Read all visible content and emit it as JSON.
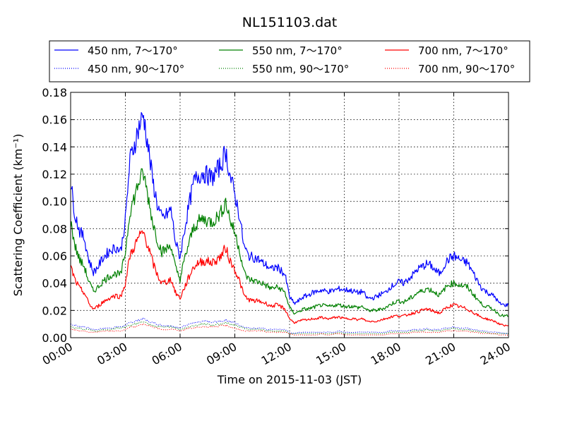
{
  "chart_data": {
    "type": "line",
    "title": "NL151103.dat",
    "xlabel": "Time on 2015-11-03 (JST)",
    "ylabel": "Scattering Coefficient (km⁻¹)",
    "xlim": [
      0,
      24
    ],
    "ylim": [
      0,
      0.18
    ],
    "grid": true,
    "legend_placement": "top",
    "x_ticks": [
      0,
      3,
      6,
      9,
      12,
      15,
      18,
      21,
      24
    ],
    "x_tick_labels": [
      "00:00",
      "03:00",
      "06:00",
      "09:00",
      "12:00",
      "15:00",
      "18:00",
      "21:00",
      "24:00"
    ],
    "y_ticks": [
      0,
      0.02,
      0.04,
      0.06,
      0.08,
      0.1,
      0.12,
      0.14,
      0.16,
      0.18
    ],
    "y_tick_labels": [
      "0.00",
      "0.02",
      "0.04",
      "0.06",
      "0.08",
      "0.10",
      "0.12",
      "0.14",
      "0.16",
      "0.18"
    ],
    "x": [
      0,
      0.25,
      0.5,
      0.75,
      1.0,
      1.25,
      1.5,
      1.75,
      2.0,
      2.25,
      2.5,
      2.75,
      3.0,
      3.25,
      3.5,
      3.75,
      4.0,
      4.25,
      4.5,
      4.75,
      5.0,
      5.25,
      5.5,
      5.75,
      6.0,
      6.25,
      6.5,
      6.75,
      7.0,
      7.25,
      7.5,
      7.75,
      8.0,
      8.25,
      8.5,
      8.75,
      9.0,
      9.25,
      9.5,
      9.75,
      10.0,
      10.25,
      10.5,
      10.75,
      11.0,
      11.25,
      11.5,
      11.75,
      12.0,
      12.25,
      12.5,
      12.75,
      13.0,
      13.25,
      13.5,
      13.75,
      14.0,
      14.25,
      14.5,
      14.75,
      15.0,
      15.25,
      15.5,
      15.75,
      16.0,
      16.25,
      16.5,
      16.75,
      17.0,
      17.25,
      17.5,
      17.75,
      18.0,
      18.25,
      18.5,
      18.75,
      19.0,
      19.25,
      19.5,
      19.75,
      20.0,
      20.25,
      20.5,
      20.75,
      21.0,
      21.25,
      21.5,
      21.75,
      22.0,
      22.25,
      22.5,
      22.75,
      23.0,
      23.25,
      23.5,
      23.75,
      24.0
    ],
    "series": [
      {
        "name": "450 nm, 7～170°",
        "color": "#0000ff",
        "style": "solid",
        "values": [
          0.113,
          0.09,
          0.078,
          0.073,
          0.057,
          0.048,
          0.052,
          0.058,
          0.062,
          0.065,
          0.066,
          0.064,
          0.086,
          0.13,
          0.142,
          0.155,
          0.163,
          0.14,
          0.115,
          0.098,
          0.087,
          0.09,
          0.094,
          0.07,
          0.059,
          0.08,
          0.098,
          0.114,
          0.119,
          0.121,
          0.119,
          0.117,
          0.122,
          0.127,
          0.137,
          0.118,
          0.105,
          0.09,
          0.067,
          0.06,
          0.059,
          0.058,
          0.055,
          0.053,
          0.05,
          0.052,
          0.05,
          0.046,
          0.03,
          0.025,
          0.027,
          0.03,
          0.031,
          0.033,
          0.034,
          0.035,
          0.034,
          0.034,
          0.035,
          0.036,
          0.035,
          0.035,
          0.034,
          0.033,
          0.034,
          0.029,
          0.029,
          0.03,
          0.032,
          0.033,
          0.037,
          0.039,
          0.041,
          0.04,
          0.043,
          0.046,
          0.05,
          0.052,
          0.054,
          0.053,
          0.049,
          0.047,
          0.054,
          0.058,
          0.06,
          0.058,
          0.056,
          0.055,
          0.049,
          0.043,
          0.037,
          0.034,
          0.032,
          0.03,
          0.025,
          0.024,
          0.024
        ]
      },
      {
        "name": "550 nm, 7～170°",
        "color": "#008000",
        "style": "solid",
        "values": [
          0.085,
          0.067,
          0.057,
          0.052,
          0.041,
          0.034,
          0.037,
          0.041,
          0.044,
          0.046,
          0.047,
          0.046,
          0.063,
          0.093,
          0.103,
          0.115,
          0.12,
          0.103,
          0.085,
          0.072,
          0.063,
          0.065,
          0.068,
          0.051,
          0.043,
          0.058,
          0.07,
          0.081,
          0.085,
          0.087,
          0.086,
          0.085,
          0.088,
          0.092,
          0.1,
          0.086,
          0.077,
          0.065,
          0.048,
          0.043,
          0.042,
          0.041,
          0.04,
          0.038,
          0.036,
          0.037,
          0.036,
          0.033,
          0.022,
          0.018,
          0.019,
          0.021,
          0.021,
          0.022,
          0.023,
          0.024,
          0.023,
          0.023,
          0.024,
          0.024,
          0.023,
          0.023,
          0.023,
          0.022,
          0.023,
          0.02,
          0.02,
          0.02,
          0.021,
          0.022,
          0.024,
          0.026,
          0.027,
          0.026,
          0.028,
          0.03,
          0.033,
          0.034,
          0.036,
          0.035,
          0.033,
          0.031,
          0.036,
          0.039,
          0.04,
          0.039,
          0.038,
          0.037,
          0.033,
          0.029,
          0.025,
          0.023,
          0.022,
          0.02,
          0.017,
          0.016,
          0.016
        ]
      },
      {
        "name": "700 nm, 7～170°",
        "color": "#ff0000",
        "style": "solid",
        "values": [
          0.052,
          0.042,
          0.036,
          0.033,
          0.025,
          0.021,
          0.023,
          0.026,
          0.028,
          0.03,
          0.031,
          0.03,
          0.04,
          0.06,
          0.067,
          0.074,
          0.077,
          0.067,
          0.055,
          0.046,
          0.04,
          0.041,
          0.043,
          0.033,
          0.029,
          0.037,
          0.045,
          0.052,
          0.055,
          0.056,
          0.056,
          0.055,
          0.057,
          0.06,
          0.066,
          0.056,
          0.05,
          0.042,
          0.031,
          0.028,
          0.027,
          0.027,
          0.026,
          0.025,
          0.023,
          0.024,
          0.023,
          0.021,
          0.014,
          0.011,
          0.012,
          0.013,
          0.013,
          0.014,
          0.014,
          0.015,
          0.014,
          0.014,
          0.015,
          0.015,
          0.014,
          0.014,
          0.014,
          0.013,
          0.014,
          0.012,
          0.012,
          0.012,
          0.013,
          0.014,
          0.015,
          0.016,
          0.016,
          0.016,
          0.017,
          0.018,
          0.019,
          0.02,
          0.021,
          0.02,
          0.019,
          0.018,
          0.021,
          0.023,
          0.024,
          0.023,
          0.022,
          0.021,
          0.019,
          0.017,
          0.015,
          0.014,
          0.013,
          0.012,
          0.01,
          0.009,
          0.009
        ]
      },
      {
        "name": "450 nm, 90～170°",
        "color": "#0000ff",
        "style": "dotted",
        "values": [
          0.01,
          0.009,
          0.008,
          0.008,
          0.007,
          0.006,
          0.006,
          0.007,
          0.007,
          0.007,
          0.008,
          0.008,
          0.009,
          0.011,
          0.012,
          0.013,
          0.014,
          0.012,
          0.011,
          0.01,
          0.009,
          0.009,
          0.009,
          0.008,
          0.007,
          0.009,
          0.01,
          0.011,
          0.011,
          0.012,
          0.012,
          0.011,
          0.012,
          0.012,
          0.013,
          0.012,
          0.011,
          0.009,
          0.008,
          0.007,
          0.007,
          0.007,
          0.007,
          0.006,
          0.006,
          0.006,
          0.006,
          0.006,
          0.004,
          0.003,
          0.004,
          0.004,
          0.004,
          0.004,
          0.004,
          0.004,
          0.004,
          0.004,
          0.004,
          0.005,
          0.004,
          0.004,
          0.004,
          0.004,
          0.004,
          0.004,
          0.004,
          0.004,
          0.004,
          0.004,
          0.005,
          0.005,
          0.005,
          0.005,
          0.005,
          0.006,
          0.006,
          0.006,
          0.007,
          0.006,
          0.006,
          0.006,
          0.007,
          0.007,
          0.008,
          0.007,
          0.007,
          0.007,
          0.006,
          0.006,
          0.005,
          0.005,
          0.004,
          0.004,
          0.004,
          0.003,
          0.003
        ]
      },
      {
        "name": "550 nm, 90～170°",
        "color": "#008000",
        "style": "dotted",
        "values": [
          0.008,
          0.007,
          0.007,
          0.006,
          0.006,
          0.005,
          0.005,
          0.006,
          0.006,
          0.006,
          0.007,
          0.007,
          0.008,
          0.009,
          0.01,
          0.011,
          0.012,
          0.01,
          0.009,
          0.008,
          0.008,
          0.008,
          0.008,
          0.007,
          0.006,
          0.007,
          0.008,
          0.009,
          0.009,
          0.01,
          0.01,
          0.009,
          0.01,
          0.01,
          0.011,
          0.01,
          0.009,
          0.008,
          0.007,
          0.006,
          0.006,
          0.006,
          0.006,
          0.005,
          0.005,
          0.005,
          0.005,
          0.005,
          0.003,
          0.003,
          0.003,
          0.003,
          0.003,
          0.003,
          0.003,
          0.003,
          0.003,
          0.003,
          0.003,
          0.004,
          0.003,
          0.003,
          0.003,
          0.003,
          0.003,
          0.003,
          0.003,
          0.003,
          0.003,
          0.003,
          0.004,
          0.004,
          0.004,
          0.004,
          0.004,
          0.005,
          0.005,
          0.005,
          0.006,
          0.005,
          0.005,
          0.005,
          0.006,
          0.006,
          0.007,
          0.006,
          0.006,
          0.006,
          0.005,
          0.005,
          0.004,
          0.004,
          0.003,
          0.003,
          0.003,
          0.003,
          0.003
        ]
      },
      {
        "name": "700 nm, 90～170°",
        "color": "#ff0000",
        "style": "dotted",
        "values": [
          0.006,
          0.006,
          0.005,
          0.005,
          0.004,
          0.004,
          0.004,
          0.005,
          0.005,
          0.005,
          0.005,
          0.005,
          0.006,
          0.008,
          0.008,
          0.009,
          0.01,
          0.009,
          0.008,
          0.007,
          0.006,
          0.006,
          0.006,
          0.006,
          0.005,
          0.006,
          0.007,
          0.007,
          0.008,
          0.008,
          0.008,
          0.008,
          0.008,
          0.009,
          0.009,
          0.008,
          0.007,
          0.006,
          0.005,
          0.005,
          0.005,
          0.005,
          0.005,
          0.004,
          0.004,
          0.004,
          0.004,
          0.004,
          0.003,
          0.002,
          0.002,
          0.002,
          0.002,
          0.002,
          0.002,
          0.003,
          0.002,
          0.002,
          0.003,
          0.003,
          0.002,
          0.002,
          0.002,
          0.002,
          0.002,
          0.002,
          0.002,
          0.002,
          0.002,
          0.002,
          0.003,
          0.003,
          0.003,
          0.003,
          0.003,
          0.004,
          0.004,
          0.004,
          0.004,
          0.004,
          0.004,
          0.004,
          0.005,
          0.005,
          0.005,
          0.005,
          0.005,
          0.005,
          0.004,
          0.004,
          0.003,
          0.003,
          0.003,
          0.003,
          0.002,
          0.002,
          0.002
        ]
      }
    ],
    "legend_order": [
      0,
      1,
      2,
      3,
      4,
      5
    ]
  }
}
